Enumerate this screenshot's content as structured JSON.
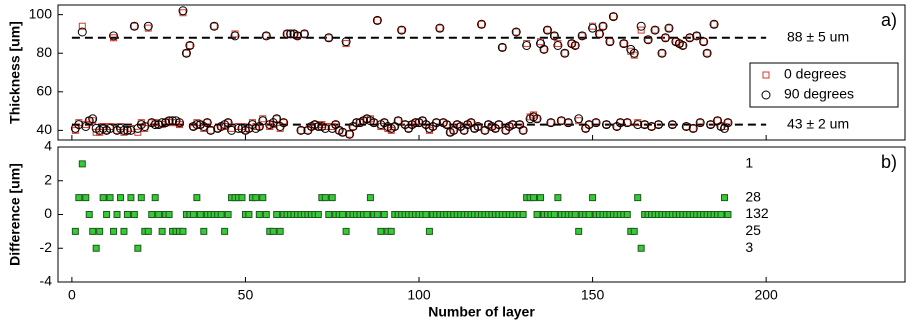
{
  "chart_data": [
    {
      "type": "scatter",
      "ylabel": "Thickness [um]",
      "panel_label": "a)",
      "x": [
        1,
        2,
        3,
        4,
        5,
        6,
        7,
        8,
        9,
        10,
        11,
        12,
        13,
        14,
        15,
        16,
        17,
        18,
        19,
        20,
        21,
        22,
        23,
        24,
        25,
        26,
        27,
        28,
        29,
        30,
        31,
        32,
        33,
        34,
        35,
        36,
        37,
        38,
        39,
        40,
        41,
        42,
        43,
        44,
        45,
        46,
        47,
        48,
        49,
        50,
        51,
        52,
        53,
        54,
        55,
        56,
        57,
        58,
        59,
        60,
        61,
        62,
        63,
        64,
        65,
        66,
        67,
        68,
        69,
        70,
        71,
        72,
        73,
        74,
        75,
        76,
        77,
        78,
        79,
        80,
        81,
        82,
        83,
        84,
        85,
        86,
        87,
        88,
        89,
        90,
        91,
        92,
        93,
        94,
        95,
        96,
        97,
        98,
        99,
        100,
        101,
        102,
        103,
        104,
        105,
        106,
        107,
        108,
        109,
        110,
        111,
        112,
        113,
        114,
        115,
        116,
        117,
        118,
        119,
        120,
        121,
        122,
        123,
        124,
        125,
        126,
        127,
        128,
        129,
        130,
        131,
        132,
        133,
        134,
        135,
        136,
        137,
        138,
        139,
        140,
        141,
        142,
        143,
        144,
        145,
        146,
        147,
        148,
        149,
        150,
        151,
        152,
        153,
        154,
        155,
        156,
        157,
        158,
        159,
        160,
        161,
        162,
        163,
        164,
        165,
        166,
        167,
        168,
        169,
        170,
        171,
        172,
        173,
        174,
        175,
        176,
        177,
        178,
        179,
        180,
        181,
        182,
        183,
        184,
        185,
        186,
        187,
        188,
        189
      ],
      "series": [
        {
          "name": "0 degrees",
          "color": "#d83a2a",
          "marker": "square",
          "values": [
            40,
            44,
            94,
            43,
            45,
            45,
            39,
            39,
            42,
            40,
            42,
            88,
            40,
            42,
            39,
            40,
            41,
            94,
            39,
            44,
            41,
            93,
            44,
            44,
            43,
            43,
            44,
            45,
            44,
            44,
            43,
            101,
            80,
            84,
            42,
            44,
            43,
            41,
            44,
            40,
            94,
            41,
            42,
            42,
            44,
            41,
            90,
            42,
            42,
            40,
            41,
            44,
            42,
            42,
            46,
            89,
            42,
            43,
            46,
            41,
            44,
            90,
            90,
            90,
            89,
            40,
            90,
            40,
            42,
            43,
            42,
            43,
            42,
            88,
            42,
            43,
            40,
            39,
            85,
            38,
            42,
            44,
            44,
            45,
            46,
            46,
            44,
            97,
            42,
            44,
            41,
            40,
            42,
            45,
            92,
            43,
            41,
            43,
            44,
            44,
            45,
            43,
            40,
            42,
            44,
            93,
            44,
            43,
            39,
            40,
            43,
            42,
            40,
            43,
            44,
            41,
            42,
            95,
            40,
            43,
            42,
            41,
            43,
            83,
            40,
            42,
            43,
            91,
            43,
            40,
            85,
            47,
            48,
            46,
            86,
            82,
            92,
            44,
            89,
            85,
            45,
            80,
            44,
            85,
            84,
            45,
            89,
            41,
            43,
            94,
            44,
            90,
            94,
            43,
            86,
            99,
            42,
            44,
            85,
            44,
            81,
            79,
            44,
            92,
            43,
            87,
            42,
            92,
            43,
            80,
            88,
            93,
            43,
            86,
            85,
            84,
            42,
            88,
            41,
            89,
            44,
            86,
            80,
            43,
            95,
            45,
            42,
            42,
            44
          ]
        },
        {
          "name": "90 degrees",
          "color": "#000000",
          "marker": "circle",
          "values": [
            41,
            43,
            91,
            42,
            45,
            46,
            41,
            40,
            41,
            40,
            41,
            89,
            40,
            41,
            40,
            40,
            40,
            94,
            41,
            43,
            42,
            94,
            44,
            43,
            43,
            44,
            44,
            45,
            45,
            45,
            44,
            102,
            80,
            84,
            42,
            43,
            43,
            42,
            44,
            40,
            94,
            41,
            42,
            43,
            44,
            40,
            89,
            41,
            41,
            40,
            41,
            43,
            41,
            42,
            45,
            89,
            43,
            44,
            46,
            42,
            44,
            90,
            90,
            90,
            89,
            40,
            90,
            40,
            42,
            43,
            42,
            42,
            41,
            88,
            41,
            43,
            40,
            39,
            86,
            38,
            42,
            44,
            44,
            45,
            46,
            45,
            44,
            97,
            43,
            44,
            42,
            41,
            42,
            45,
            92,
            43,
            41,
            43,
            44,
            44,
            45,
            43,
            41,
            42,
            44,
            93,
            44,
            43,
            39,
            40,
            43,
            42,
            40,
            43,
            44,
            41,
            42,
            95,
            40,
            43,
            42,
            41,
            43,
            83,
            40,
            42,
            43,
            91,
            43,
            40,
            84,
            46,
            47,
            46,
            85,
            82,
            92,
            44,
            89,
            84,
            45,
            80,
            44,
            85,
            84,
            46,
            89,
            41,
            43,
            93,
            44,
            90,
            94,
            43,
            86,
            99,
            42,
            44,
            85,
            44,
            82,
            80,
            43,
            94,
            43,
            87,
            42,
            92,
            43,
            80,
            88,
            93,
            43,
            86,
            85,
            84,
            42,
            88,
            41,
            89,
            44,
            86,
            80,
            43,
            95,
            45,
            42,
            41,
            44
          ]
        }
      ],
      "ref_lines": [
        {
          "value": 88,
          "label": "88 ± 5 um"
        },
        {
          "value": 43,
          "label": "43 ± 2 um"
        }
      ],
      "xlim": [
        -4,
        240
      ],
      "ylim": [
        35,
        105
      ],
      "yticks": [
        40,
        60,
        80,
        100
      ],
      "legend": "right"
    },
    {
      "type": "scatter",
      "ylabel": "Difference [um]",
      "xlabel": "Number of layer",
      "panel_label": "b)",
      "x": [
        1,
        2,
        3,
        4,
        5,
        6,
        7,
        8,
        9,
        10,
        11,
        12,
        13,
        14,
        15,
        16,
        17,
        18,
        19,
        20,
        21,
        22,
        23,
        24,
        25,
        26,
        27,
        28,
        29,
        30,
        31,
        32,
        33,
        34,
        35,
        36,
        37,
        38,
        39,
        40,
        41,
        42,
        43,
        44,
        45,
        46,
        47,
        48,
        49,
        50,
        51,
        52,
        53,
        54,
        55,
        56,
        57,
        58,
        59,
        60,
        61,
        62,
        63,
        64,
        65,
        66,
        67,
        68,
        69,
        70,
        71,
        72,
        73,
        74,
        75,
        76,
        77,
        78,
        79,
        80,
        81,
        82,
        83,
        84,
        85,
        86,
        87,
        88,
        89,
        90,
        91,
        92,
        93,
        94,
        95,
        96,
        97,
        98,
        99,
        100,
        101,
        102,
        103,
        104,
        105,
        106,
        107,
        108,
        109,
        110,
        111,
        112,
        113,
        114,
        115,
        116,
        117,
        118,
        119,
        120,
        121,
        122,
        123,
        124,
        125,
        126,
        127,
        128,
        129,
        130,
        131,
        132,
        133,
        134,
        135,
        136,
        137,
        138,
        139,
        140,
        141,
        142,
        143,
        144,
        145,
        146,
        147,
        148,
        149,
        150,
        151,
        152,
        153,
        154,
        155,
        156,
        157,
        158,
        159,
        160,
        161,
        162,
        163,
        164,
        165,
        166,
        167,
        168,
        169,
        170,
        171,
        172,
        173,
        174,
        175,
        176,
        177,
        178,
        179,
        180,
        181,
        182,
        183,
        184,
        185,
        186,
        187,
        188,
        189
      ],
      "series": [
        {
          "color": "#33cc33",
          "marker": "square",
          "values": [
            -1,
            1,
            3,
            1,
            0,
            -1,
            -2,
            -1,
            1,
            0,
            1,
            -1,
            0,
            1,
            -1,
            0,
            1,
            0,
            -2,
            1,
            -1,
            -1,
            0,
            1,
            0,
            -1,
            0,
            0,
            -1,
            -1,
            -1,
            -1,
            0,
            0,
            0,
            1,
            0,
            -1,
            0,
            0,
            0,
            0,
            0,
            -1,
            0,
            1,
            1,
            1,
            1,
            0,
            0,
            1,
            1,
            0,
            1,
            0,
            -1,
            -1,
            0,
            -1,
            0,
            0,
            0,
            0,
            0,
            0,
            0,
            0,
            0,
            0,
            0,
            1,
            1,
            0,
            1,
            0,
            0,
            0,
            -1,
            0,
            0,
            0,
            0,
            0,
            0,
            1,
            0,
            0,
            -1,
            0,
            -1,
            -1,
            0,
            0,
            0,
            0,
            0,
            0,
            0,
            0,
            0,
            0,
            -1,
            0,
            0,
            0,
            0,
            0,
            0,
            0,
            0,
            0,
            0,
            0,
            0,
            0,
            0,
            0,
            0,
            0,
            0,
            0,
            0,
            0,
            0,
            0,
            0,
            0,
            0,
            0,
            1,
            1,
            1,
            0,
            1,
            0,
            0,
            0,
            0,
            1,
            0,
            0,
            0,
            0,
            0,
            -1,
            0,
            0,
            0,
            1,
            0,
            0,
            0,
            0,
            0,
            0,
            0,
            0,
            0,
            0,
            -1,
            -1,
            1,
            -2,
            0,
            0,
            0,
            0,
            0,
            0,
            0,
            0,
            0,
            0,
            0,
            0,
            0,
            0,
            0,
            0,
            0,
            0,
            0,
            0,
            0,
            0,
            0,
            1,
            0
          ]
        }
      ],
      "count_labels": [
        {
          "value": 3,
          "label": "1"
        },
        {
          "value": 1,
          "label": "28"
        },
        {
          "value": 0,
          "label": "132"
        },
        {
          "value": -1,
          "label": "25"
        },
        {
          "value": -2,
          "label": "3"
        }
      ],
      "xlim": [
        -4,
        240
      ],
      "ylim": [
        -4,
        4
      ],
      "yticks": [
        -4,
        -2,
        0,
        2,
        4
      ],
      "xticks": [
        0,
        50,
        100,
        150,
        200
      ]
    }
  ]
}
